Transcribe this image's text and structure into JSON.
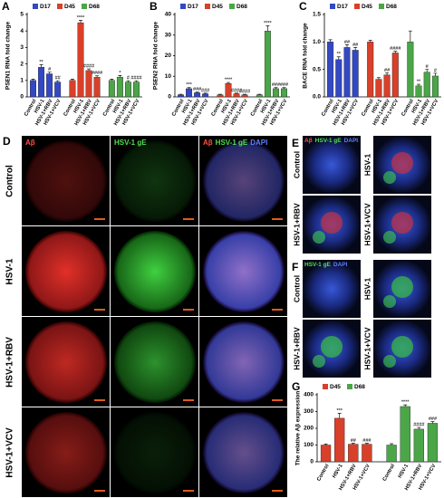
{
  "chart_data": [
    {
      "type": "bar",
      "panel": "A",
      "ylabel": "PSEN1 RNA fold change",
      "categories": [
        "Control",
        "HSV-1",
        "HSV-1+RBV",
        "HSV-1+VCV"
      ],
      "ylim": [
        0,
        5
      ],
      "yticks": [
        0,
        1,
        2,
        3,
        4,
        5
      ],
      "series": [
        {
          "name": "D17",
          "color": "#3348c4",
          "values": [
            1,
            1.8,
            1.4,
            0.9
          ],
          "errors": [
            0.08,
            0.15,
            0.1,
            0.08
          ],
          "annotations": [
            null,
            "**",
            "#",
            "##"
          ]
        },
        {
          "name": "D45",
          "color": "#d8402a",
          "values": [
            1,
            4.5,
            1.6,
            1.2
          ],
          "errors": [
            0.08,
            0.15,
            0.1,
            0.08
          ],
          "annotations": [
            null,
            "****",
            "####",
            "####"
          ]
        },
        {
          "name": "D68",
          "color": "#4aa647",
          "values": [
            1,
            1.2,
            0.9,
            0.9
          ],
          "errors": [
            0.08,
            0.1,
            0.08,
            0.08
          ],
          "annotations": [
            null,
            "*",
            "#",
            "####"
          ]
        }
      ]
    },
    {
      "type": "bar",
      "panel": "B",
      "ylabel": "PSEN2 RNA fold change",
      "categories": [
        "Control",
        "HSV-1",
        "HSV-1+RBV",
        "HSV-1+VCV"
      ],
      "ylim": [
        0,
        40
      ],
      "yticks": [
        0,
        10,
        20,
        30,
        40
      ],
      "series": [
        {
          "name": "D17",
          "color": "#3348c4",
          "values": [
            1,
            4,
            2,
            1.5
          ],
          "errors": [
            0.3,
            0.5,
            0.3,
            0.3
          ],
          "annotations": [
            null,
            "***",
            "###",
            "###"
          ]
        },
        {
          "name": "D45",
          "color": "#d8402a",
          "values": [
            1,
            6.5,
            1.5,
            1
          ],
          "errors": [
            0.3,
            0.5,
            0.3,
            0.3
          ],
          "annotations": [
            null,
            "****",
            "####",
            "####"
          ]
        },
        {
          "name": "D68",
          "color": "#4aa647",
          "values": [
            1,
            32,
            4,
            4
          ],
          "errors": [
            0.3,
            2.5,
            0.5,
            0.5
          ],
          "annotations": [
            null,
            "****",
            "###",
            "###"
          ]
        }
      ]
    },
    {
      "type": "bar",
      "panel": "C",
      "ylabel": "BACE RNA fold change",
      "categories": [
        "Control",
        "HSV-1",
        "HSV-1+RBV",
        "HSV-1+VCV"
      ],
      "ylim": [
        0,
        1.5
      ],
      "yticks": [
        {
          "value": 0,
          "label": "0.0"
        },
        0.5,
        {
          "value": 1,
          "label": "1.0"
        },
        1.5
      ],
      "series": [
        {
          "name": "D17",
          "color": "#3348c4",
          "values": [
            1,
            0.68,
            0.9,
            0.85
          ],
          "errors": [
            0.04,
            0.05,
            0.05,
            0.05
          ],
          "annotations": [
            null,
            "**",
            "##",
            "##"
          ]
        },
        {
          "name": "D45",
          "color": "#d8402a",
          "values": [
            1,
            0.32,
            0.4,
            0.8
          ],
          "errors": [
            0.03,
            0.03,
            0.04,
            0.03
          ],
          "annotations": [
            null,
            null,
            "##",
            "####"
          ]
        },
        {
          "name": "D68",
          "color": "#4aa647",
          "values": [
            1,
            0.2,
            0.45,
            0.38
          ],
          "errors": [
            0.2,
            0.03,
            0.05,
            0.05
          ],
          "annotations": [
            null,
            "**",
            "#",
            "#"
          ]
        }
      ]
    },
    {
      "type": "bar",
      "panel": "G",
      "ylabel": "The relative Aβ expression",
      "categories": [
        "Control",
        "HSV-1",
        "HSV-1+RBV",
        "HSV-1+VCV"
      ],
      "ylim": [
        0,
        400
      ],
      "yticks": [
        0,
        100,
        200,
        300,
        400
      ],
      "series": [
        {
          "name": "D45",
          "color": "#d8402a",
          "values": [
            100,
            260,
            105,
            105
          ],
          "errors": [
            6,
            30,
            6,
            6
          ],
          "annotations": [
            null,
            "***",
            "##",
            "###"
          ]
        },
        {
          "name": "D68",
          "color": "#4aa647",
          "values": [
            100,
            330,
            195,
            230
          ],
          "errors": [
            8,
            10,
            10,
            10
          ],
          "annotations": [
            null,
            "****",
            "####",
            "###"
          ]
        }
      ]
    }
  ],
  "image_panels": [
    {
      "panel": "D",
      "rows": [
        "Control",
        "HSV-1",
        "HSV-1+RBV",
        "HSV-1+VCV"
      ],
      "columns": [
        [
          {
            "text": "Aβ",
            "color": "#ff5040"
          }
        ],
        [
          {
            "text": "HSV-1 gE",
            "color": "#50e050"
          }
        ],
        [
          {
            "text": "Aβ",
            "color": "#ff5040"
          },
          {
            "text": "HSV-1 gE",
            "color": "#50e050"
          },
          {
            "text": "DAPI",
            "color": "#6080ff"
          }
        ]
      ]
    },
    {
      "panel": "E",
      "cells": [
        "Control",
        "HSV-1",
        "HSV-1+RBV",
        "HSV-1+VCV"
      ],
      "header": [
        {
          "text": "Aβ",
          "color": "#ff5040"
        },
        {
          "text": "HSV-1 gE",
          "color": "#50e050"
        },
        {
          "text": "DAPI",
          "color": "#6080ff"
        }
      ]
    },
    {
      "panel": "F",
      "cells": [
        "Control",
        "HSV-1",
        "HSV-1+RBV",
        "HSV-1+VCV"
      ],
      "header": [
        {
          "text": "HSV-1 gE",
          "color": "#50e050"
        },
        {
          "text": "DAPI",
          "color": "#6080ff"
        }
      ]
    }
  ]
}
